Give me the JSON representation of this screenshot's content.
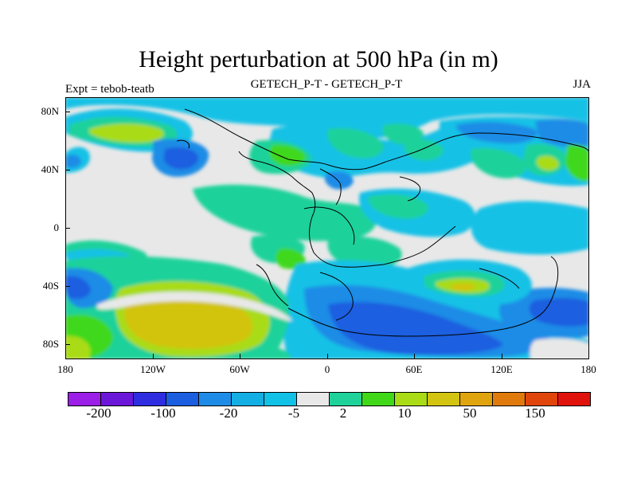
{
  "title": "Height perturbation at 500 hPa (in m)",
  "left_string": "Expt = tebob-teatb",
  "center_string": "GETECH_P-T - GETECH_P-T",
  "right_string": "JJA",
  "y_axis": {
    "ticks": [
      "80N",
      "40N",
      "0",
      "40S",
      "80S"
    ],
    "values": [
      80,
      40,
      0,
      -40,
      -80
    ]
  },
  "x_axis": {
    "ticks": [
      "180",
      "120W",
      "60W",
      "0",
      "60E",
      "120E",
      "180"
    ],
    "values": [
      -180,
      -120,
      -60,
      0,
      60,
      120,
      180
    ]
  },
  "map": {
    "lon_range": [
      -180,
      180
    ],
    "lat_range": [
      -90,
      90
    ],
    "background_color": "#e8e8e8",
    "projection": "cylindrical equidistant"
  },
  "colorbar": {
    "colors": [
      "#9b1fe6",
      "#6b17d9",
      "#2e2ee0",
      "#1b5ee0",
      "#1e8ce6",
      "#13aee3",
      "#12c1e6",
      "#e8e8e8",
      "#1fd29a",
      "#41d81a",
      "#a9dc17",
      "#d2c410",
      "#e0a40f",
      "#e07a0d",
      "#e0450c",
      "#e0130c"
    ],
    "labels": [
      "-200",
      "-100",
      "-20",
      "-5",
      "2",
      "10",
      "50",
      "150"
    ]
  }
}
